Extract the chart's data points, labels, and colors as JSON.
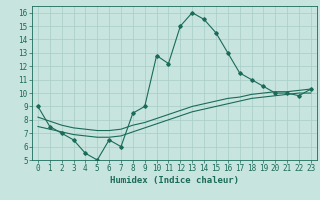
{
  "title": "",
  "xlabel": "Humidex (Indice chaleur)",
  "bg_color": "#c8e4de",
  "line_color": "#1a6b5a",
  "grid_color": "#a8ccc6",
  "xlim": [
    -0.5,
    23.5
  ],
  "ylim": [
    5,
    16.5
  ],
  "xticks": [
    0,
    1,
    2,
    3,
    4,
    5,
    6,
    7,
    8,
    9,
    10,
    11,
    12,
    13,
    14,
    15,
    16,
    17,
    18,
    19,
    20,
    21,
    22,
    23
  ],
  "yticks": [
    5,
    6,
    7,
    8,
    9,
    10,
    11,
    12,
    13,
    14,
    15,
    16
  ],
  "line1_x": [
    0,
    1,
    2,
    3,
    4,
    5,
    6,
    7,
    8,
    9,
    10,
    11,
    12,
    13,
    14,
    15,
    16,
    17,
    18,
    19,
    20,
    21,
    22,
    23
  ],
  "line1_y": [
    9.0,
    7.5,
    7.0,
    6.5,
    5.5,
    5.0,
    6.5,
    6.0,
    8.5,
    9.0,
    12.8,
    12.2,
    15.0,
    16.0,
    15.5,
    14.5,
    13.0,
    11.5,
    11.0,
    10.5,
    10.0,
    10.0,
    9.8,
    10.3
  ],
  "line2_x": [
    0,
    1,
    2,
    3,
    4,
    5,
    6,
    7,
    8,
    9,
    10,
    11,
    12,
    13,
    14,
    15,
    16,
    17,
    18,
    19,
    20,
    21,
    22,
    23
  ],
  "line2_y": [
    8.2,
    7.9,
    7.6,
    7.4,
    7.3,
    7.2,
    7.2,
    7.3,
    7.6,
    7.8,
    8.1,
    8.4,
    8.7,
    9.0,
    9.2,
    9.4,
    9.6,
    9.7,
    9.9,
    10.0,
    10.1,
    10.1,
    10.2,
    10.3
  ],
  "line3_x": [
    0,
    1,
    2,
    3,
    4,
    5,
    6,
    7,
    8,
    9,
    10,
    11,
    12,
    13,
    14,
    15,
    16,
    17,
    18,
    19,
    20,
    21,
    22,
    23
  ],
  "line3_y": [
    7.5,
    7.3,
    7.1,
    6.9,
    6.8,
    6.7,
    6.7,
    6.8,
    7.1,
    7.4,
    7.7,
    8.0,
    8.3,
    8.6,
    8.8,
    9.0,
    9.2,
    9.4,
    9.6,
    9.7,
    9.8,
    9.9,
    10.0,
    10.0
  ],
  "font_size": 5.5,
  "xlabel_fontsize": 6.5,
  "lw": 0.8,
  "marker_size": 1.8
}
